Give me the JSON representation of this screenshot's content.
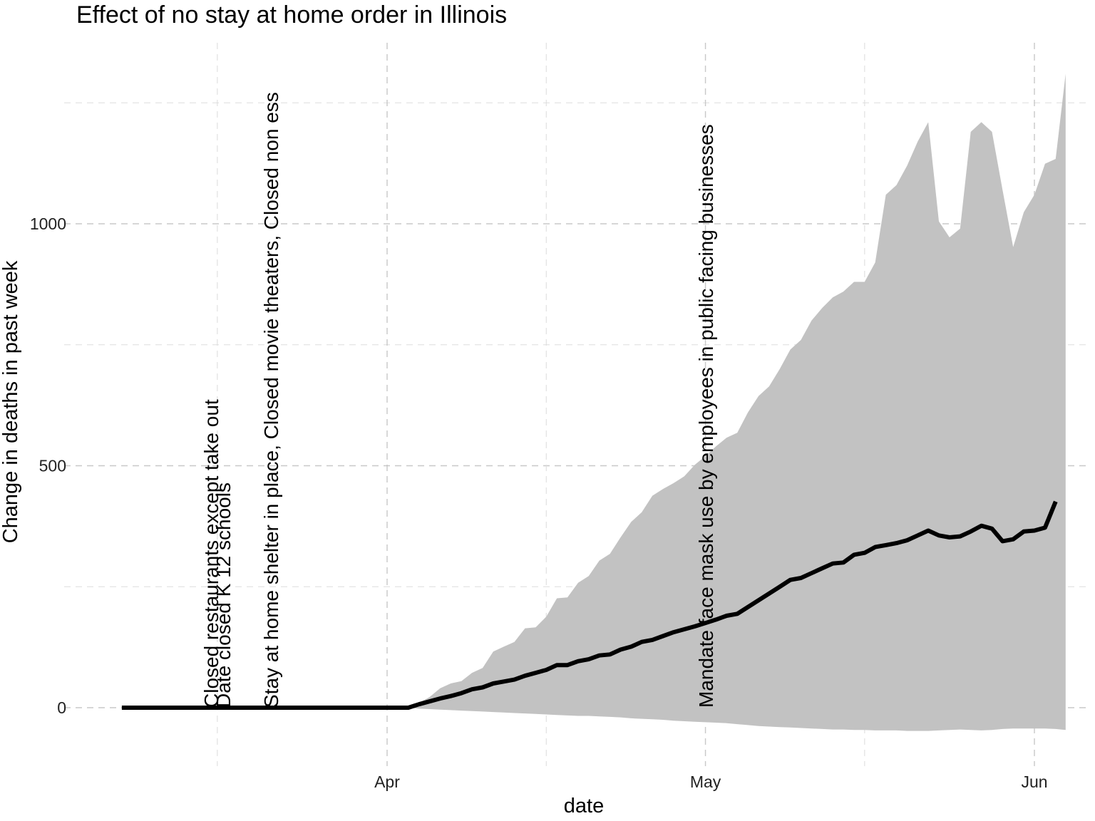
{
  "chart_data": {
    "type": "line",
    "title": "Effect of no stay at home order in Illinois",
    "xlabel": "date",
    "ylabel": "Change in deaths in past week",
    "x_ticks": [
      "Apr",
      "May",
      "Jun"
    ],
    "y_ticks": [
      0,
      500,
      1000
    ],
    "xlim": [
      "2020-03-03",
      "2020-06-02"
    ],
    "ylim": [
      -120,
      1310
    ],
    "grid": true,
    "legend": "none",
    "colors": {
      "line": "#000000",
      "band": "#c2c2c2",
      "grid": "#c8c8c8"
    },
    "annotations": [
      {
        "date": "2020-03-16",
        "text": "Closed restaurants except take out"
      },
      {
        "date": "2020-03-17",
        "text": "Date closed K 12 schools"
      },
      {
        "date": "2020-03-21",
        "text": "Stay at home  shelter in place, Closed movie theaters, Closed non ess"
      },
      {
        "date": "2020-05-01",
        "text": "Mandate face mask use by employees in public facing businesses"
      }
    ],
    "series": [
      {
        "values": [
          {
            "x": "2020-03-07",
            "y": 0
          },
          {
            "x": "2020-03-14",
            "y": 0
          },
          {
            "x": "2020-03-21",
            "y": 0
          },
          {
            "x": "2020-03-28",
            "y": 0
          },
          {
            "x": "2020-04-03",
            "y": 0
          },
          {
            "x": "2020-04-04",
            "y": 7
          },
          {
            "x": "2020-04-05",
            "y": 13
          },
          {
            "x": "2020-04-06",
            "y": 19
          },
          {
            "x": "2020-04-07",
            "y": 24
          },
          {
            "x": "2020-04-08",
            "y": 30
          },
          {
            "x": "2020-04-09",
            "y": 38
          },
          {
            "x": "2020-04-10",
            "y": 42
          },
          {
            "x": "2020-04-11",
            "y": 50
          },
          {
            "x": "2020-04-12",
            "y": 54
          },
          {
            "x": "2020-04-13",
            "y": 58
          },
          {
            "x": "2020-04-14",
            "y": 66
          },
          {
            "x": "2020-04-15",
            "y": 72
          },
          {
            "x": "2020-04-16",
            "y": 78
          },
          {
            "x": "2020-04-17",
            "y": 88
          },
          {
            "x": "2020-04-18",
            "y": 88
          },
          {
            "x": "2020-04-19",
            "y": 96
          },
          {
            "x": "2020-04-20",
            "y": 100
          },
          {
            "x": "2020-04-21",
            "y": 108
          },
          {
            "x": "2020-04-22",
            "y": 110
          },
          {
            "x": "2020-04-23",
            "y": 120
          },
          {
            "x": "2020-04-24",
            "y": 126
          },
          {
            "x": "2020-04-25",
            "y": 136
          },
          {
            "x": "2020-04-26",
            "y": 140
          },
          {
            "x": "2020-04-27",
            "y": 148
          },
          {
            "x": "2020-04-28",
            "y": 156
          },
          {
            "x": "2020-04-29",
            "y": 162
          },
          {
            "x": "2020-04-30",
            "y": 168
          },
          {
            "x": "2020-05-01",
            "y": 175
          },
          {
            "x": "2020-05-02",
            "y": 182
          },
          {
            "x": "2020-05-03",
            "y": 190
          },
          {
            "x": "2020-05-04",
            "y": 194
          },
          {
            "x": "2020-05-05",
            "y": 208
          },
          {
            "x": "2020-05-06",
            "y": 222
          },
          {
            "x": "2020-05-07",
            "y": 236
          },
          {
            "x": "2020-05-08",
            "y": 250
          },
          {
            "x": "2020-05-09",
            "y": 264
          },
          {
            "x": "2020-05-10",
            "y": 268
          },
          {
            "x": "2020-05-11",
            "y": 278
          },
          {
            "x": "2020-05-12",
            "y": 288
          },
          {
            "x": "2020-05-13",
            "y": 298
          },
          {
            "x": "2020-05-14",
            "y": 300
          },
          {
            "x": "2020-05-15",
            "y": 316
          },
          {
            "x": "2020-05-16",
            "y": 320
          },
          {
            "x": "2020-05-17",
            "y": 332
          },
          {
            "x": "2020-05-18",
            "y": 336
          },
          {
            "x": "2020-05-19",
            "y": 340
          },
          {
            "x": "2020-05-20",
            "y": 346
          },
          {
            "x": "2020-05-21",
            "y": 356
          },
          {
            "x": "2020-05-22",
            "y": 366
          },
          {
            "x": "2020-05-23",
            "y": 356
          },
          {
            "x": "2020-05-24",
            "y": 352
          },
          {
            "x": "2020-05-25",
            "y": 354
          },
          {
            "x": "2020-05-26",
            "y": 364
          },
          {
            "x": "2020-05-27",
            "y": 376
          },
          {
            "x": "2020-05-28",
            "y": 370
          },
          {
            "x": "2020-05-29",
            "y": 344
          },
          {
            "x": "2020-05-30",
            "y": 348
          },
          {
            "x": "2020-05-31",
            "y": 364
          },
          {
            "x": "2020-06-01",
            "y": 366
          },
          {
            "x": "2020-06-02",
            "y": 372
          },
          {
            "x": "2020-06-03",
            "y": 426
          }
        ]
      }
    ],
    "band": [
      {
        "x": "2020-04-03",
        "lo": 0,
        "hi": 0
      },
      {
        "x": "2020-04-04",
        "lo": -2,
        "hi": 10
      },
      {
        "x": "2020-04-05",
        "lo": -3,
        "hi": 22
      },
      {
        "x": "2020-04-06",
        "lo": -4,
        "hi": 40
      },
      {
        "x": "2020-04-07",
        "lo": -5,
        "hi": 50
      },
      {
        "x": "2020-04-08",
        "lo": -6,
        "hi": 55
      },
      {
        "x": "2020-04-09",
        "lo": -7,
        "hi": 72
      },
      {
        "x": "2020-04-10",
        "lo": -8,
        "hi": 82
      },
      {
        "x": "2020-04-11",
        "lo": -9,
        "hi": 116
      },
      {
        "x": "2020-04-12",
        "lo": -10,
        "hi": 126
      },
      {
        "x": "2020-04-13",
        "lo": -11,
        "hi": 136
      },
      {
        "x": "2020-04-14",
        "lo": -12,
        "hi": 164
      },
      {
        "x": "2020-04-15",
        "lo": -13,
        "hi": 166
      },
      {
        "x": "2020-04-16",
        "lo": -14,
        "hi": 188
      },
      {
        "x": "2020-04-17",
        "lo": -15,
        "hi": 226
      },
      {
        "x": "2020-04-18",
        "lo": -16,
        "hi": 228
      },
      {
        "x": "2020-04-19",
        "lo": -17,
        "hi": 258
      },
      {
        "x": "2020-04-20",
        "lo": -17,
        "hi": 272
      },
      {
        "x": "2020-04-21",
        "lo": -18,
        "hi": 304
      },
      {
        "x": "2020-04-22",
        "lo": -19,
        "hi": 318
      },
      {
        "x": "2020-04-23",
        "lo": -20,
        "hi": 352
      },
      {
        "x": "2020-04-24",
        "lo": -22,
        "hi": 384
      },
      {
        "x": "2020-04-25",
        "lo": -23,
        "hi": 404
      },
      {
        "x": "2020-04-26",
        "lo": -24,
        "hi": 438
      },
      {
        "x": "2020-04-27",
        "lo": -25,
        "hi": 452
      },
      {
        "x": "2020-04-28",
        "lo": -27,
        "hi": 464
      },
      {
        "x": "2020-04-29",
        "lo": -28,
        "hi": 478
      },
      {
        "x": "2020-04-30",
        "lo": -29,
        "hi": 502
      },
      {
        "x": "2020-05-01",
        "lo": -30,
        "hi": 520
      },
      {
        "x": "2020-05-02",
        "lo": -31,
        "hi": 540
      },
      {
        "x": "2020-05-03",
        "lo": -32,
        "hi": 558
      },
      {
        "x": "2020-05-04",
        "lo": -34,
        "hi": 568
      },
      {
        "x": "2020-05-05",
        "lo": -36,
        "hi": 610
      },
      {
        "x": "2020-05-06",
        "lo": -38,
        "hi": 644
      },
      {
        "x": "2020-05-07",
        "lo": -39,
        "hi": 664
      },
      {
        "x": "2020-05-08",
        "lo": -40,
        "hi": 700
      },
      {
        "x": "2020-05-09",
        "lo": -41,
        "hi": 740
      },
      {
        "x": "2020-05-10",
        "lo": -42,
        "hi": 760
      },
      {
        "x": "2020-05-11",
        "lo": -43,
        "hi": 800
      },
      {
        "x": "2020-05-12",
        "lo": -44,
        "hi": 826
      },
      {
        "x": "2020-05-13",
        "lo": -45,
        "hi": 848
      },
      {
        "x": "2020-05-14",
        "lo": -45,
        "hi": 860
      },
      {
        "x": "2020-05-15",
        "lo": -46,
        "hi": 880
      },
      {
        "x": "2020-05-16",
        "lo": -46,
        "hi": 880
      },
      {
        "x": "2020-05-17",
        "lo": -47,
        "hi": 920
      },
      {
        "x": "2020-05-18",
        "lo": -47,
        "hi": 1060
      },
      {
        "x": "2020-05-19",
        "lo": -47,
        "hi": 1080
      },
      {
        "x": "2020-05-20",
        "lo": -48,
        "hi": 1120
      },
      {
        "x": "2020-05-21",
        "lo": -48,
        "hi": 1170
      },
      {
        "x": "2020-05-22",
        "lo": -48,
        "hi": 1210
      },
      {
        "x": "2020-05-23",
        "lo": -47,
        "hi": 1005
      },
      {
        "x": "2020-05-24",
        "lo": -46,
        "hi": 972
      },
      {
        "x": "2020-05-25",
        "lo": -45,
        "hi": 990
      },
      {
        "x": "2020-05-26",
        "lo": -46,
        "hi": 1190
      },
      {
        "x": "2020-05-27",
        "lo": -47,
        "hi": 1210
      },
      {
        "x": "2020-05-28",
        "lo": -46,
        "hi": 1190
      },
      {
        "x": "2020-05-29",
        "lo": -44,
        "hi": 1070
      },
      {
        "x": "2020-05-30",
        "lo": -43,
        "hi": 952
      },
      {
        "x": "2020-05-31",
        "lo": -43,
        "hi": 1024
      },
      {
        "x": "2020-06-01",
        "lo": -43,
        "hi": 1060
      },
      {
        "x": "2020-06-02",
        "lo": -43,
        "hi": 1124
      },
      {
        "x": "2020-06-03",
        "lo": -44,
        "hi": 1134
      },
      {
        "x": "2020-06-03",
        "lo": -46,
        "hi": 1310
      }
    ]
  }
}
